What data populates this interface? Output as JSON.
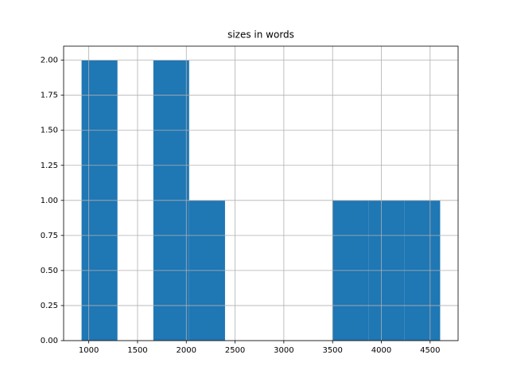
{
  "chart_data": {
    "type": "histogram",
    "title": "sizes in words",
    "bins": [
      926,
      1294,
      1662,
      2029,
      2397,
      2765,
      3132,
      3500,
      3868,
      4235,
      4603
    ],
    "values": [
      2,
      0,
      2,
      1,
      0,
      0,
      0,
      1,
      1,
      1
    ],
    "color": "#1f77b4",
    "xlim": [
      742,
      4787
    ],
    "xticks": [
      1000,
      1500,
      2000,
      2500,
      3000,
      3500,
      4000,
      4500
    ],
    "ylim": [
      0,
      2.1
    ],
    "yticks": [
      {
        "value": 0,
        "label": "0.00"
      },
      {
        "value": 0.25,
        "label": "0.25"
      },
      {
        "value": 0.5,
        "label": "0.50"
      },
      {
        "value": 0.75,
        "label": "0.75"
      },
      {
        "value": 1,
        "label": "1.00"
      },
      {
        "value": 1.25,
        "label": "1.25"
      },
      {
        "value": 1.5,
        "label": "1.50"
      },
      {
        "value": 1.75,
        "label": "1.75"
      },
      {
        "value": 2,
        "label": "2.00"
      }
    ],
    "grid": true
  }
}
